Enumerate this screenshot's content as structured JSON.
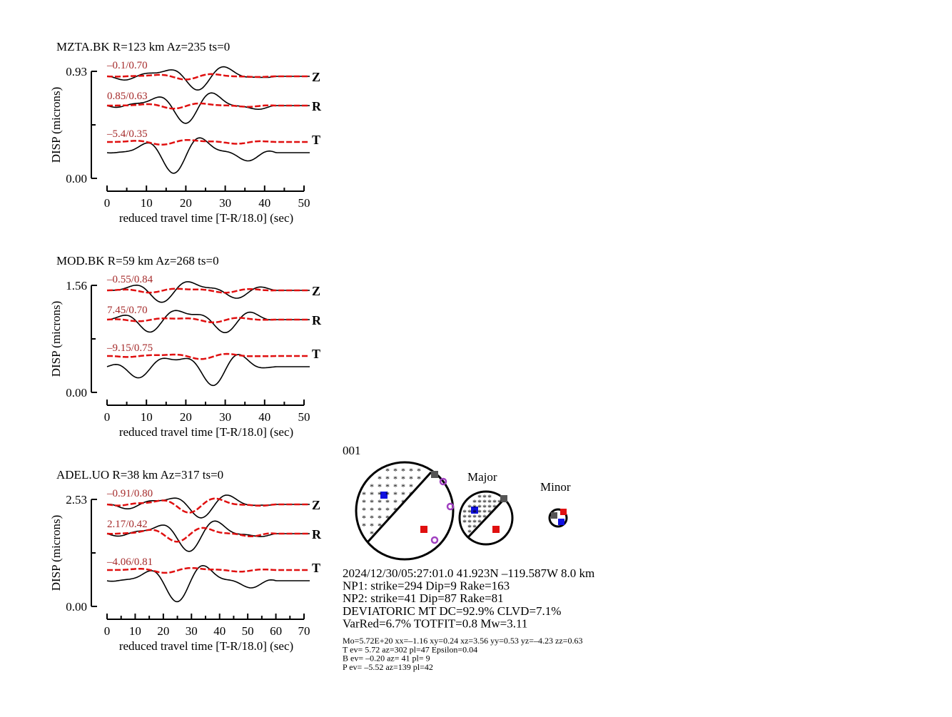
{
  "panels": [
    {
      "title": "MZTA.BK R=123 km Az=235 ts=0",
      "ylabel": "DISP (microns)",
      "xlabel": "reduced travel time [T-R/18.0] (sec)",
      "ylim": [
        0,
        0.93
      ],
      "yticks": [
        {
          "value": 0,
          "label": "0.00"
        },
        0.93
      ],
      "xlim": [
        0,
        50
      ],
      "xticks": [
        0,
        10,
        20,
        30,
        40,
        50
      ],
      "components": [
        {
          "name": "Z",
          "score": "–0.1/0.70"
        },
        {
          "name": "R",
          "score": "0.85/0.63"
        },
        {
          "name": "T",
          "score": "–5.4/0.35"
        }
      ]
    },
    {
      "title": "MOD.BK R=59 km Az=268 ts=0",
      "ylabel": "DISP (microns)",
      "xlabel": "reduced travel time [T-R/18.0] (sec)",
      "ylim": [
        0,
        1.56
      ],
      "yticks": [
        {
          "value": 0,
          "label": "0.00"
        },
        1.56
      ],
      "xlim": [
        0,
        50
      ],
      "xticks": [
        0,
        10,
        20,
        30,
        40,
        50
      ],
      "components": [
        {
          "name": "Z",
          "score": "–0.55/0.84"
        },
        {
          "name": "R",
          "score": "7.45/0.70"
        },
        {
          "name": "T",
          "score": "–9.15/0.75"
        }
      ]
    },
    {
      "title": "ADEL.UO R=38 km Az=317 ts=0",
      "ylabel": "DISP (microns)",
      "xlabel": "reduced travel time [T-R/18.0] (sec)",
      "ylim": [
        0,
        2.53
      ],
      "yticks": [
        {
          "value": 0,
          "label": "0.00"
        },
        2.53
      ],
      "xlim": [
        0,
        70
      ],
      "xticks": [
        0,
        10,
        20,
        30,
        40,
        50,
        60,
        70
      ],
      "components": [
        {
          "name": "Z",
          "score": "–0.91/0.80"
        },
        {
          "name": "R",
          "score": "2.17/0.42"
        },
        {
          "name": "T",
          "score": "–4.06/0.81"
        }
      ]
    }
  ],
  "mechanism": {
    "id": "001",
    "major": "Major",
    "minor": "Minor",
    "info": [
      "2024/12/30/05:27:01.0 41.923N –119.587W 8.0 km",
      "NP1: strike=294 Dip=9 Rake=163",
      "NP2: strike=41 Dip=87 Rake=81",
      "DEVIATORIC MT DC=92.9% CLVD=7.1%",
      "VarRed=6.7% TOTFIT=0.8 Mw=3.11"
    ],
    "details": [
      "Mo=5.72E+20 xx=–1.16 xy=0.24 xz=3.56 yy=0.53 yz=–4.23 zz=0.63",
      "T ev=  5.72 az=302 pl=47 Epsilon=0.04",
      "B ev= –0.20 az= 41 pl= 9",
      "P ev= –5.52 az=139 pl=42"
    ]
  }
}
